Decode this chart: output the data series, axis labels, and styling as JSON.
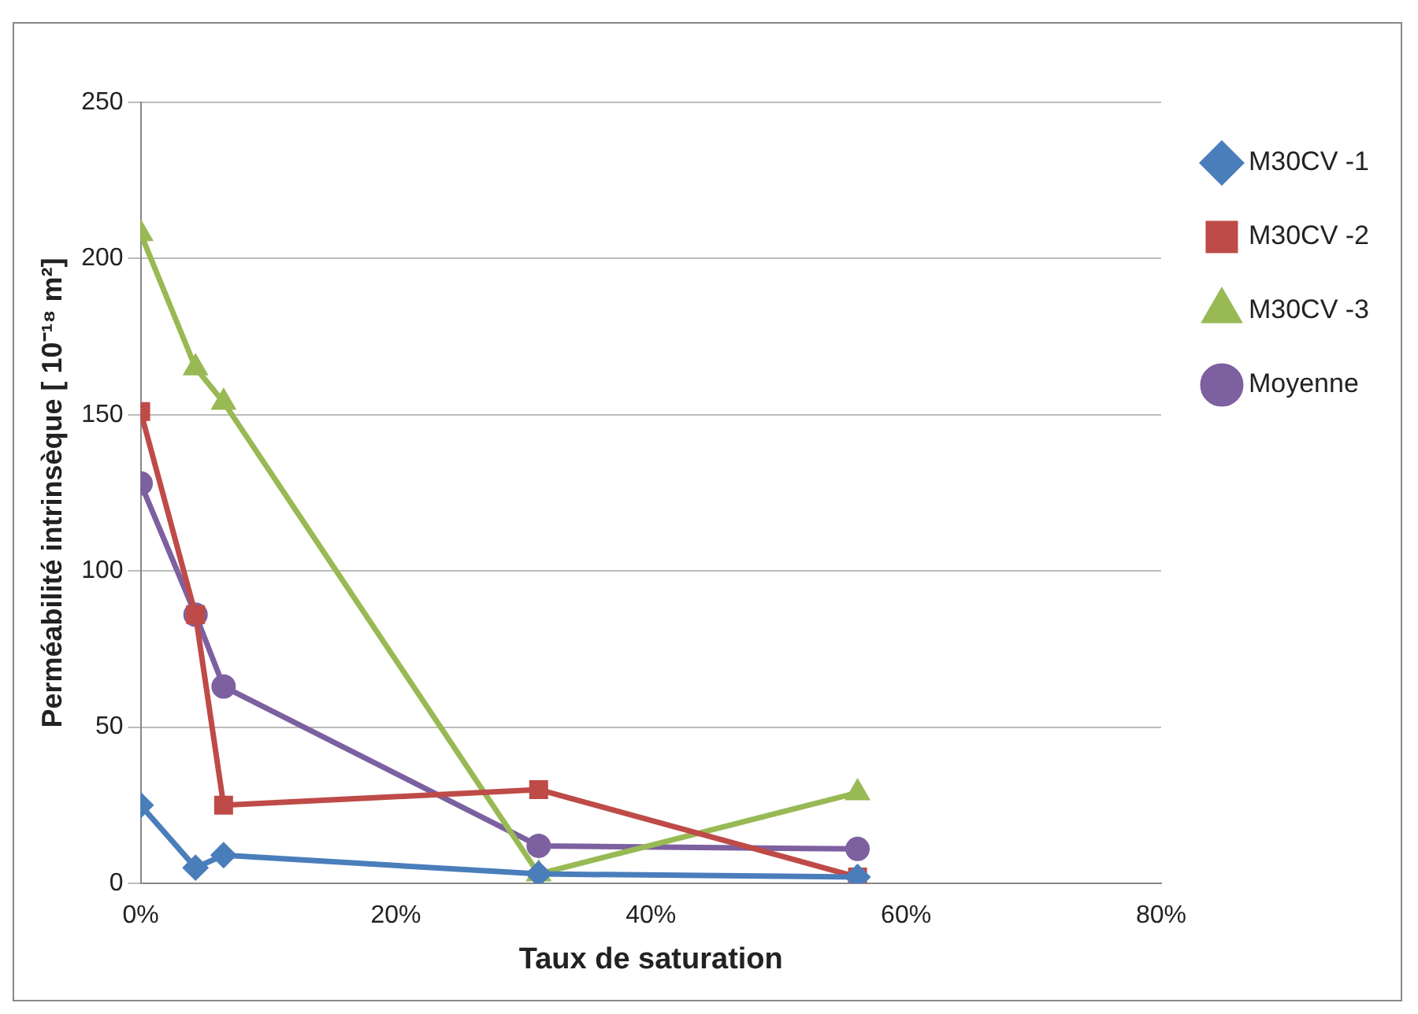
{
  "chart_data": {
    "type": "line",
    "xlabel": "Taux de saturation",
    "ylabel": "Perméabilité intrinsèque [ 10⁻¹⁸ m²]",
    "xlim": [
      0,
      80
    ],
    "xticks": [
      {
        "value": 0,
        "label": "0%"
      },
      {
        "value": 20,
        "label": "20%"
      },
      {
        "value": 40,
        "label": "40%"
      },
      {
        "value": 60,
        "label": "60%"
      },
      {
        "value": 80,
        "label": "80%"
      }
    ],
    "ylim": [
      0,
      250
    ],
    "yticks": [
      0,
      50,
      100,
      150,
      200,
      250
    ],
    "grid": "y",
    "legend": "top right",
    "x": [
      0,
      4.3,
      6.5,
      31.2,
      56.2
    ],
    "series": [
      {
        "name": "M30CV -1",
        "color": "#4a7ebb",
        "marker": "diamond",
        "values": [
          25,
          5,
          9,
          3,
          2
        ]
      },
      {
        "name": "M30CV -2",
        "color": "#be4b48",
        "marker": "square",
        "values": [
          151,
          86,
          25,
          30,
          2
        ]
      },
      {
        "name": "M30CV -3",
        "color": "#98b954",
        "marker": "triangle",
        "values": [
          208,
          165,
          154,
          3,
          29
        ]
      },
      {
        "name": "Moyenne",
        "color": "#7d60a0",
        "marker": "circle",
        "values": [
          128,
          86,
          63,
          12,
          11
        ]
      }
    ]
  }
}
